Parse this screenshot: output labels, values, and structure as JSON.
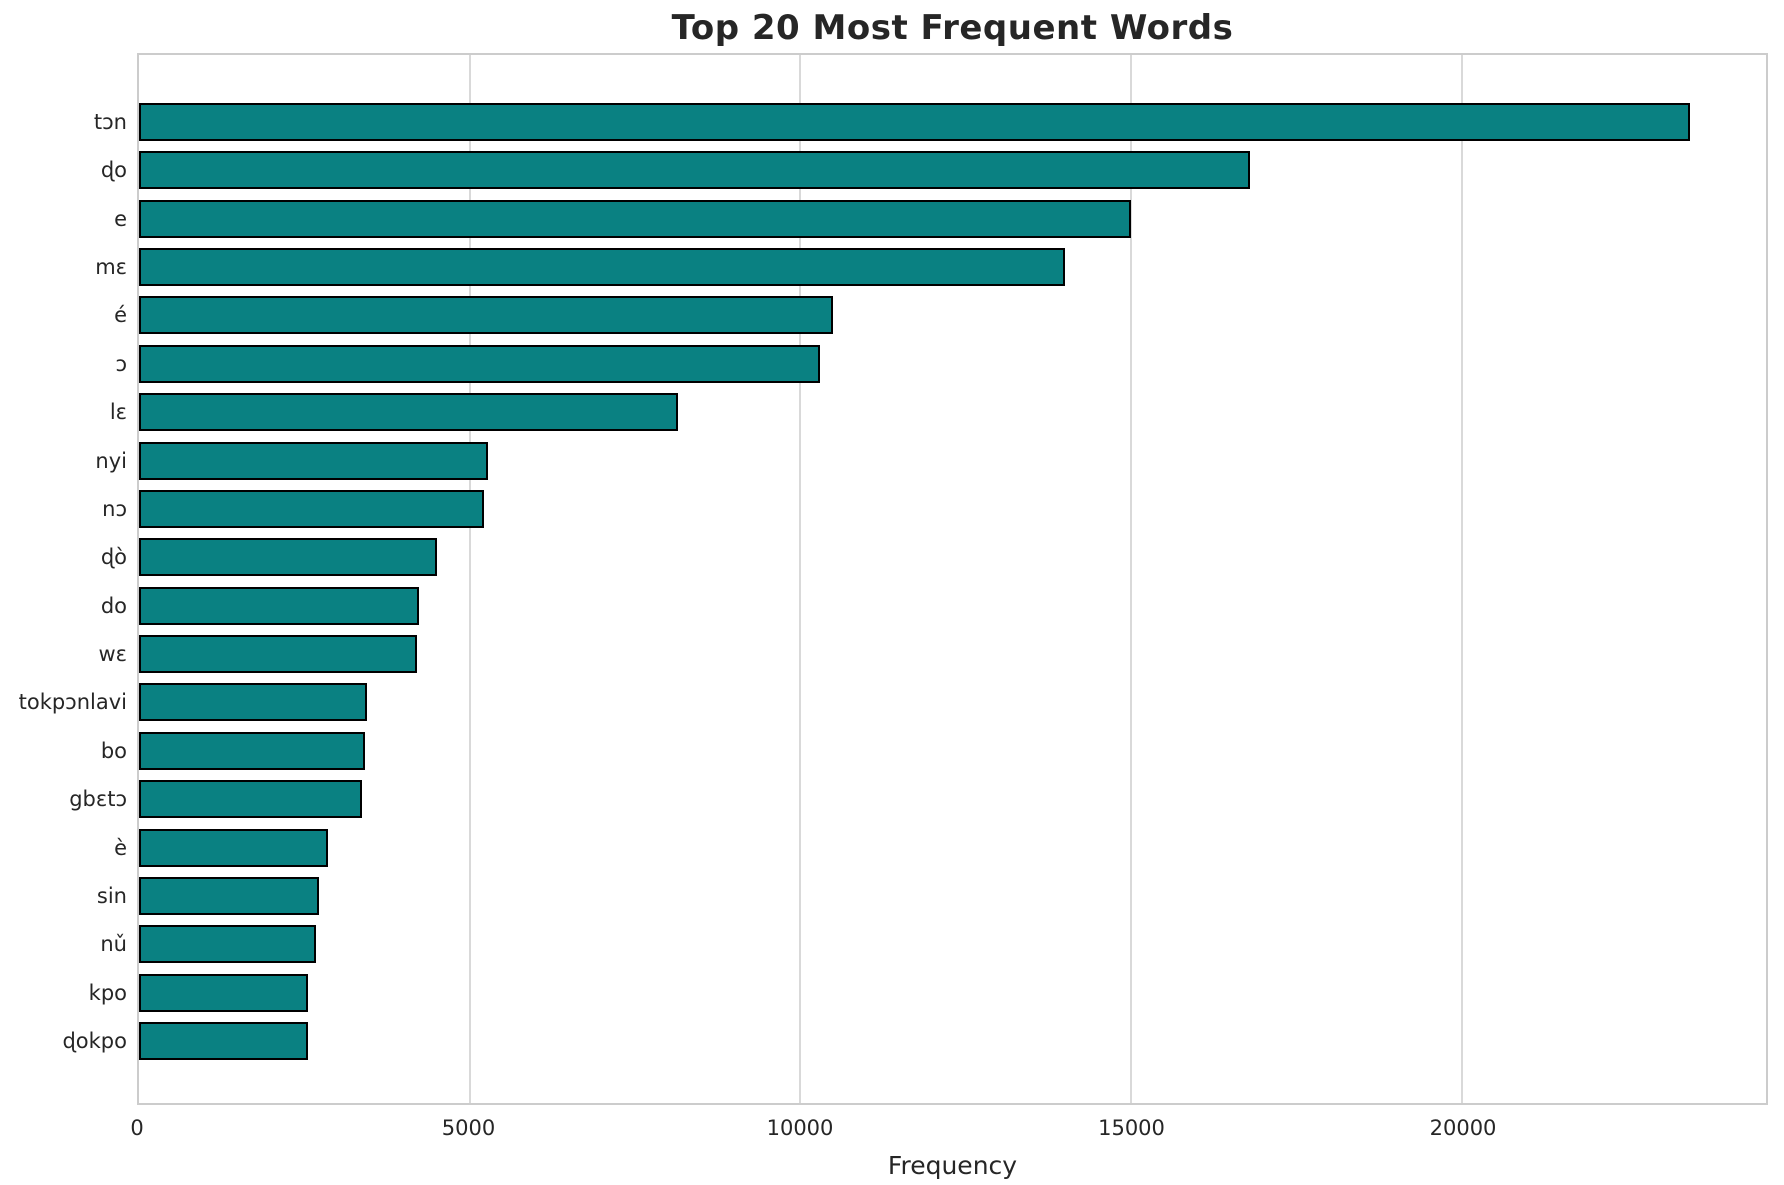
{
  "chart_data": {
    "type": "bar",
    "orientation": "horizontal",
    "title": "Top 20 Most Frequent Words",
    "xlabel": "Frequency",
    "ylabel": "",
    "categories": [
      "tɔn",
      "ɖo",
      "e",
      "mɛ",
      "é",
      "ɔ",
      "lɛ",
      "nyi",
      "nɔ",
      "ɖò",
      "do",
      "wɛ",
      "tokpɔnlavi",
      "bo",
      "gbɛtɔ",
      "è",
      "sin",
      "nǔ",
      "kpo",
      "ɖokpo"
    ],
    "values": [
      23450,
      16800,
      15000,
      14000,
      10500,
      10300,
      8150,
      5270,
      5210,
      4500,
      4240,
      4200,
      3450,
      3410,
      3370,
      2860,
      2720,
      2680,
      2560,
      2550
    ],
    "xticks": [
      0,
      5000,
      10000,
      15000,
      20000
    ],
    "xlim": [
      0,
      24600
    ],
    "grid": true,
    "legend": false,
    "bar_color": "#0a8182",
    "bar_edge_color": "#000000",
    "grid_color": "#d9d9d9",
    "text_color": "#262626"
  }
}
